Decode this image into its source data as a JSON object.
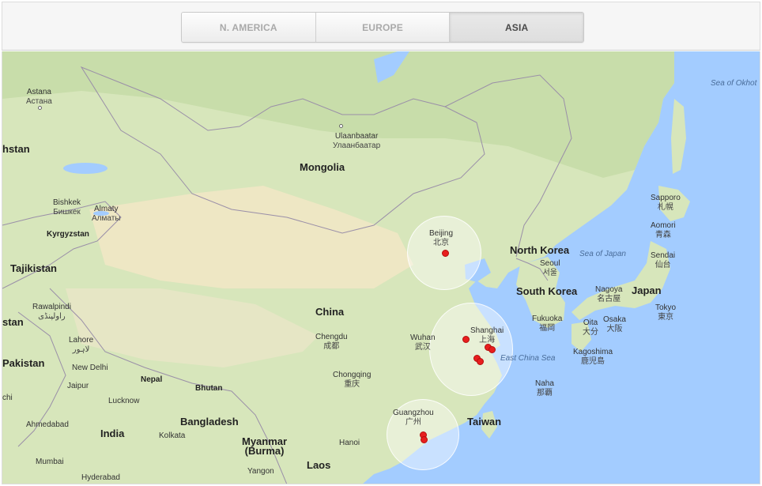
{
  "tabs": [
    {
      "label": "N. AMERICA",
      "active": false
    },
    {
      "label": "EUROPE",
      "active": false
    },
    {
      "label": "ASIA",
      "active": true
    }
  ],
  "map": {
    "countries": [
      "Mongolia",
      "China",
      "Kyrgyzstan",
      "Tajikistan",
      "North Korea",
      "South Korea",
      "Japan",
      "Taiwan",
      "Pakistan",
      "India",
      "Nepal",
      "Bhutan",
      "Bangladesh",
      "Myanmar\n(Burma)",
      "Laos",
      "hstan",
      "stan"
    ],
    "seas": [
      "Sea of Okhot",
      "Sea of Japan",
      "East China Sea"
    ],
    "cities": [
      {
        "name": "Astana",
        "local": "Астана"
      },
      {
        "name": "Ulaanbaatar",
        "local": "Улаанбаатар"
      },
      {
        "name": "Bishkek",
        "local": "Бишкек"
      },
      {
        "name": "Almaty",
        "local": "Алматы"
      },
      {
        "name": "Beijing",
        "local": "北京"
      },
      {
        "name": "Sapporo",
        "local": "札幌"
      },
      {
        "name": "Aomori",
        "local": "青森"
      },
      {
        "name": "Sendai",
        "local": "仙台"
      },
      {
        "name": "Seoul",
        "local": "서울"
      },
      {
        "name": "Nagoya",
        "local": "名古屋"
      },
      {
        "name": "Tokyo",
        "local": "東京"
      },
      {
        "name": "Fukuoka",
        "local": "福岡"
      },
      {
        "name": "Oita",
        "local": "大分"
      },
      {
        "name": "Osaka",
        "local": "大阪"
      },
      {
        "name": "Kagoshima",
        "local": "鹿児島"
      },
      {
        "name": "Shanghai",
        "local": "上海"
      },
      {
        "name": "Wuhan",
        "local": "武汉"
      },
      {
        "name": "Chengdu",
        "local": "成都"
      },
      {
        "name": "Chongqing",
        "local": "重庆"
      },
      {
        "name": "Naha",
        "local": "那覇"
      },
      {
        "name": "Guangzhou",
        "local": "广州"
      },
      {
        "name": "Rawalpindi",
        "local": "راولپنڈی"
      },
      {
        "name": "Lahore",
        "local": "لاہور"
      },
      {
        "name": "New Delhi",
        "local": ""
      },
      {
        "name": "Jaipur",
        "local": ""
      },
      {
        "name": "Lucknow",
        "local": ""
      },
      {
        "name": "Ahmedabad",
        "local": ""
      },
      {
        "name": "Kolkata",
        "local": ""
      },
      {
        "name": "Mumbai",
        "local": ""
      },
      {
        "name": "Hyderabad",
        "local": ""
      },
      {
        "name": "Hanoi",
        "local": ""
      },
      {
        "name": "Yangon",
        "local": ""
      },
      {
        "name": "chi",
        "local": ""
      }
    ]
  },
  "colors": {
    "water": "#a3ccff",
    "land_north": "#cfe3b0",
    "land_desert": "#efe8c6",
    "land_south": "#d9e7bd",
    "marker": "#e81e1e",
    "border": "#9a8fa8"
  }
}
